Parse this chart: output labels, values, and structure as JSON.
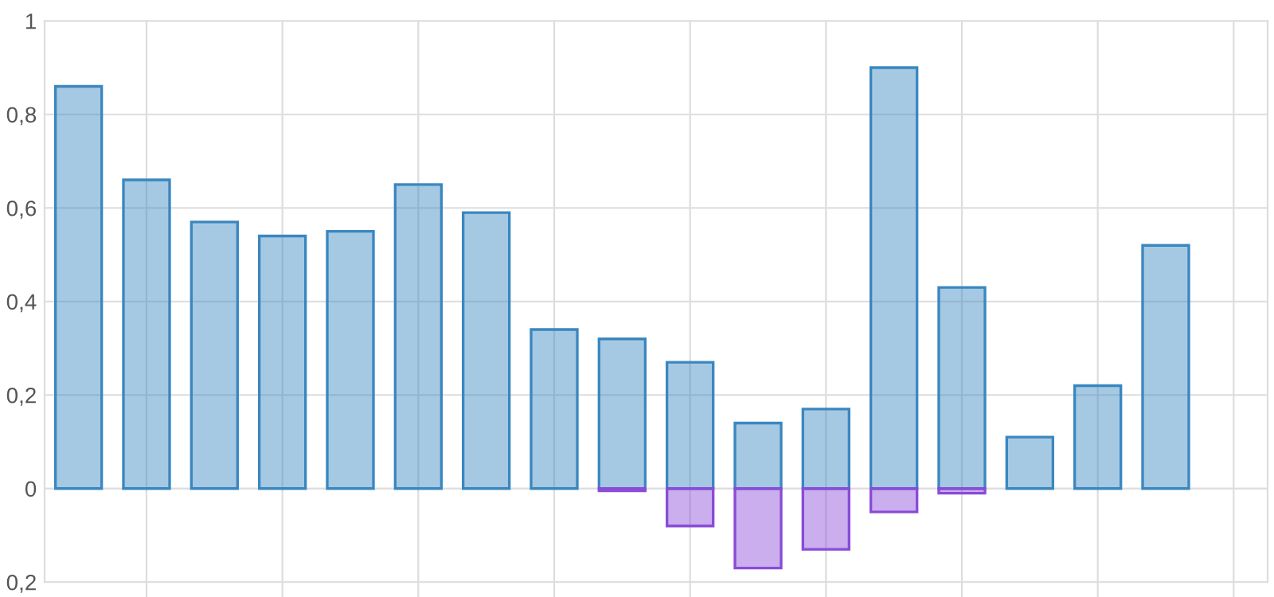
{
  "chart_data": {
    "type": "bar",
    "categories": [
      null,
      null,
      null,
      null,
      null,
      null,
      null,
      null,
      null,
      null,
      null,
      null,
      null,
      null,
      null,
      null,
      null,
      null
    ],
    "series": [
      {
        "color": "#3a87c0",
        "values": [
          0.86,
          0.66,
          0.57,
          0.54,
          0.55,
          0.65,
          0.59,
          0.34,
          0.32,
          0.27,
          0.14,
          0.17,
          0.9,
          0.43,
          0.11,
          0.22,
          0.52,
          null
        ]
      },
      {
        "color": "#8a4bd8",
        "values": [
          null,
          null,
          null,
          null,
          null,
          null,
          null,
          null,
          -0.005,
          -0.08,
          -0.17,
          -0.13,
          -0.05,
          -0.01,
          null,
          null,
          null,
          null
        ]
      }
    ],
    "ylim": [
      -0.2,
      1
    ],
    "yticks": [
      {
        "value": -0.2,
        "label": "0,2"
      },
      0,
      {
        "value": 0.2,
        "label": "0,2"
      },
      {
        "value": 0.4,
        "label": "0,4"
      },
      {
        "value": 0.6,
        "label": "0,6"
      },
      {
        "value": 0.8,
        "label": "0,8"
      },
      1
    ],
    "grid": true,
    "legend": false
  }
}
